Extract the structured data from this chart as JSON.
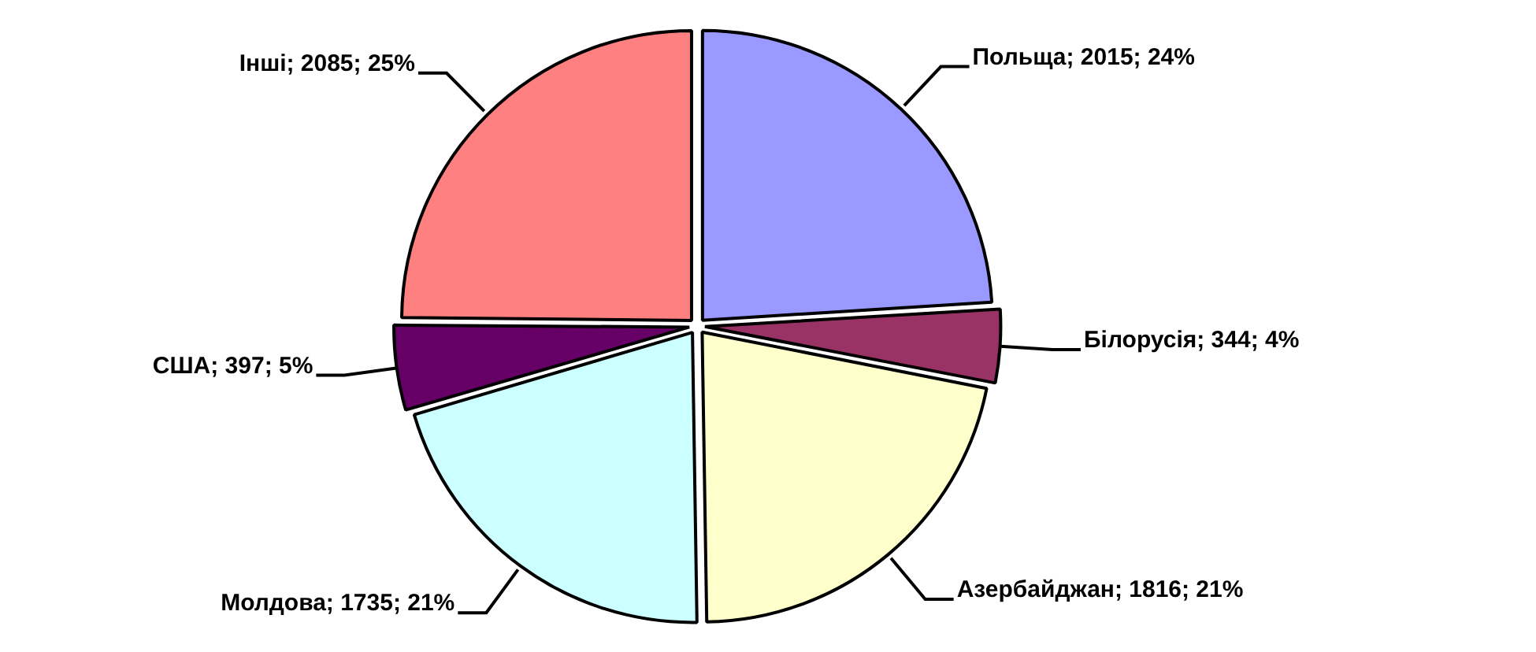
{
  "chart_data": {
    "type": "pie",
    "categories": [
      "Польща",
      "Білорусія",
      "Азербайджан",
      "Молдова",
      "США",
      "Інші"
    ],
    "values": [
      2015,
      344,
      1816,
      1735,
      397,
      2085
    ],
    "value_labels": [
      "2015; 24%",
      "344; 4%",
      "1816; 21%",
      "1735; 21%",
      "397; 5%",
      "2085; 25%"
    ],
    "colors": [
      "#9999ff",
      "#993366",
      "#ffffcc",
      "#ccffff",
      "#660066",
      "#ff8080"
    ],
    "legend": false
  }
}
